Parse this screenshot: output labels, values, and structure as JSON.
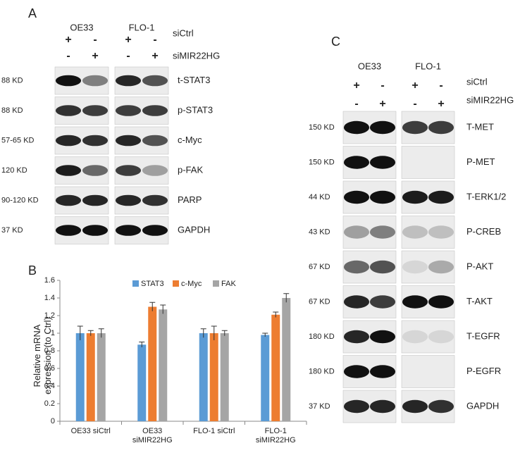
{
  "panel_a": {
    "label": "A",
    "cell_lines": [
      "OE33",
      "FLO-1"
    ],
    "conditions": [
      {
        "name": "siCtrl",
        "signs": [
          "+",
          "-",
          "+",
          "-"
        ]
      },
      {
        "name": "siMIR22HG",
        "signs": [
          "-",
          "+",
          "-",
          "+"
        ]
      }
    ],
    "blots": [
      {
        "size": "88 KD",
        "protein": "t-STAT3"
      },
      {
        "size": "88 KD",
        "protein": "p-STAT3"
      },
      {
        "size": "57-65 KD",
        "protein": "c-Myc"
      },
      {
        "size": "120 KD",
        "protein": "p-FAK"
      },
      {
        "size": "90-120 KD",
        "protein": "PARP"
      },
      {
        "size": "37 KD",
        "protein": "GAPDH"
      }
    ]
  },
  "panel_b_label": "B",
  "chart_data": {
    "type": "bar",
    "y_label": "Relative mRNA expression (to Ctrl)",
    "categories": [
      "OE33 siCtrl",
      "OE33 siMIR22HG",
      "FLO-1 siCtrl",
      "FLO-1 siMIR22HG"
    ],
    "series": [
      {
        "name": "STAT3",
        "color": "#5b9bd5",
        "values": [
          1,
          0.87,
          1,
          0.98
        ],
        "errors": [
          0.08,
          0.03,
          0.05,
          0.02
        ]
      },
      {
        "name": "c-Myc",
        "color": "#ed7d31",
        "values": [
          1,
          1.3,
          1,
          1.21
        ],
        "errors": [
          0.03,
          0.05,
          0.08,
          0.03
        ]
      },
      {
        "name": "FAK",
        "color": "#a5a5a5",
        "values": [
          1,
          1.27,
          1,
          1.4
        ],
        "errors": [
          0.05,
          0.05,
          0.03,
          0.05
        ]
      }
    ],
    "ylim": [
      0,
      1.6
    ],
    "yticks": [
      0,
      {
        "value": 0.2,
        "label": "0.2"
      },
      {
        "value": 0.4,
        "label": "0.4"
      },
      {
        "value": 0.6,
        "label": "0.6"
      },
      {
        "value": 0.8,
        "label": "0.8"
      },
      1,
      {
        "value": 1.2,
        "label": "1.2"
      },
      {
        "value": 1.4,
        "label": "1.4"
      },
      {
        "value": 1.6,
        "label": "1.6"
      }
    ],
    "legend": "top"
  },
  "panel_c": {
    "label": "C",
    "cell_lines": [
      "OE33",
      "FLO-1"
    ],
    "conditions": [
      {
        "name": "siCtrl",
        "signs": [
          "+",
          "-",
          "+",
          "-"
        ]
      },
      {
        "name": "siMIR22HG",
        "signs": [
          "-",
          "+",
          "-",
          "+"
        ]
      }
    ],
    "blots": [
      {
        "size": "150 KD",
        "protein": "T-MET"
      },
      {
        "size": "150 KD",
        "protein": "P-MET"
      },
      {
        "size": "44 KD",
        "protein": "T-ERK1/2"
      },
      {
        "size": "43 KD",
        "protein": "P-CREB"
      },
      {
        "size": "67 KD",
        "protein": "P-AKT"
      },
      {
        "size": "67 KD",
        "protein": "T-AKT"
      },
      {
        "size": "180 KD",
        "protein": "T-EGFR"
      },
      {
        "size": "180 KD",
        "protein": "P-EGFR"
      },
      {
        "size": "37 KD",
        "protein": "GAPDH"
      }
    ]
  }
}
